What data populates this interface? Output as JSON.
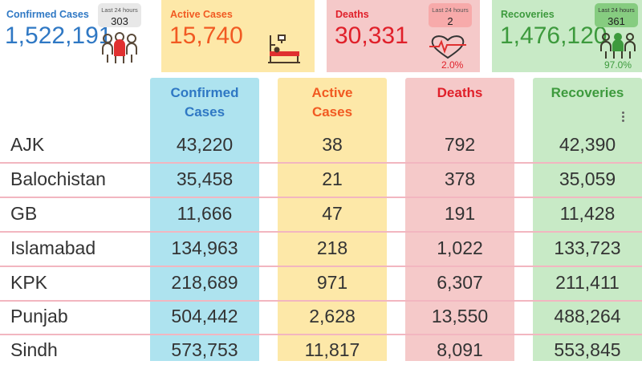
{
  "cards": {
    "confirmed": {
      "title": "Confirmed Cases",
      "value": "1,522,191",
      "last24_label": "Last 24 hours",
      "last24_value": "303"
    },
    "active": {
      "title": "Active Cases",
      "value": "15,740"
    },
    "deaths": {
      "title": "Deaths",
      "value": "30,331",
      "last24_label": "Last 24 hours",
      "last24_value": "2",
      "rate": "2.0%"
    },
    "recoveries": {
      "title": "Recoveries",
      "value": "1,476,120",
      "last24_label": "Last 24 hours",
      "last24_value": "361",
      "rate": "97.0%"
    }
  },
  "table": {
    "headers": {
      "confirmed": "Confirmed Cases",
      "active": "Active Cases",
      "deaths": "Deaths",
      "recoveries": "Recoveries"
    },
    "rows": [
      {
        "name": "AJK",
        "confirmed": "43,220",
        "active": "38",
        "deaths": "792",
        "recoveries": "42,390"
      },
      {
        "name": "Balochistan",
        "confirmed": "35,458",
        "active": "21",
        "deaths": "378",
        "recoveries": "35,059"
      },
      {
        "name": "GB",
        "confirmed": "11,666",
        "active": "47",
        "deaths": "191",
        "recoveries": "11,428"
      },
      {
        "name": "Islamabad",
        "confirmed": "134,963",
        "active": "218",
        "deaths": "1,022",
        "recoveries": "133,723"
      },
      {
        "name": "KPK",
        "confirmed": "218,689",
        "active": "971",
        "deaths": "6,307",
        "recoveries": "211,411"
      },
      {
        "name": "Punjab",
        "confirmed": "504,442",
        "active": "2,628",
        "deaths": "13,550",
        "recoveries": "488,264"
      },
      {
        "name": "Sindh",
        "confirmed": "573,753",
        "active": "11,817",
        "deaths": "8,091",
        "recoveries": "553,845"
      }
    ]
  },
  "icons": [
    "people-icon",
    "hospital-bed-icon",
    "heart-pulse-icon",
    "recovered-people-icon",
    "more-options-icon"
  ],
  "colors": {
    "confirmed": "#2f78c4",
    "confirmed_bg": "#aee3ef",
    "active": "#f15a22",
    "active_bg": "#fde8a8",
    "deaths": "#e0202a",
    "deaths_bg": "#f5c9c9",
    "recoveries": "#3d9a3d",
    "recoveries_bg": "#c8eac6"
  }
}
